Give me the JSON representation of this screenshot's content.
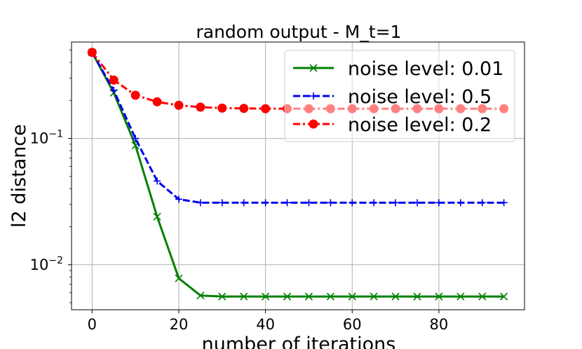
{
  "chart_data": {
    "type": "line",
    "title": "random output - M_t=1",
    "xlabel": "number of iterations",
    "ylabel": "l2 distance",
    "yscale": "log",
    "xlim": [
      -4.75,
      99.75
    ],
    "ylim": [
      0.0044,
      0.58
    ],
    "grid": true,
    "legend_position": "upper-right",
    "x_ticks": [
      {
        "value": 0,
        "label": "0"
      },
      {
        "value": 20,
        "label": "20"
      },
      {
        "value": 40,
        "label": "40"
      },
      {
        "value": 60,
        "label": "60"
      },
      {
        "value": 80,
        "label": "80"
      }
    ],
    "y_ticks": [
      {
        "value": 0.1,
        "base": "10",
        "exp": "−1"
      },
      {
        "value": 0.01,
        "base": "10",
        "exp": "−2"
      }
    ],
    "x": [
      0,
      5,
      10,
      15,
      20,
      25,
      30,
      35,
      40,
      45,
      50,
      55,
      60,
      65,
      70,
      75,
      80,
      85,
      90,
      95
    ],
    "series": [
      {
        "name": "noise level: 0.01",
        "color": "#008000",
        "marker": "x",
        "linestyle": "solid",
        "values": [
          0.48,
          0.23,
          0.088,
          0.024,
          0.0078,
          0.0057,
          0.0056,
          0.0056,
          0.0056,
          0.0056,
          0.0056,
          0.0056,
          0.0056,
          0.0056,
          0.0056,
          0.0056,
          0.0056,
          0.0056,
          0.0056,
          0.0056
        ]
      },
      {
        "name": "noise level: 0.5",
        "color": "#0000ee",
        "marker": "+",
        "linestyle": "dashed",
        "values": [
          0.48,
          0.24,
          0.1,
          0.046,
          0.033,
          0.031,
          0.031,
          0.031,
          0.031,
          0.031,
          0.031,
          0.031,
          0.031,
          0.031,
          0.031,
          0.031,
          0.031,
          0.031,
          0.031,
          0.031
        ]
      },
      {
        "name": "noise level: 0.2",
        "color": "#ff0000",
        "marker": "o",
        "linestyle": "dashdot",
        "values": [
          0.48,
          0.29,
          0.22,
          0.195,
          0.183,
          0.177,
          0.174,
          0.173,
          0.172,
          0.172,
          0.172,
          0.172,
          0.172,
          0.172,
          0.172,
          0.172,
          0.172,
          0.172,
          0.172,
          0.172
        ]
      }
    ]
  }
}
